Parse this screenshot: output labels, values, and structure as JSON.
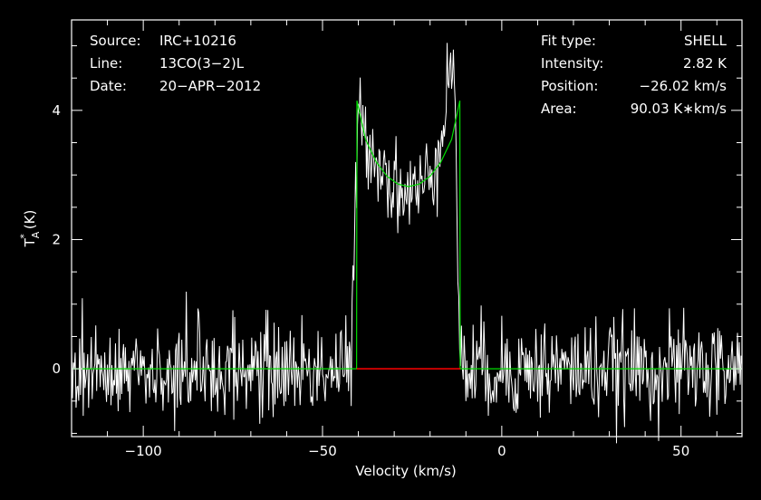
{
  "chart_data": {
    "type": "line",
    "xlabel": "Velocity (km/s)",
    "ylabel": "(K)",
    "ylabel_symbol": "T",
    "ylabel_sub": "A",
    "ylabel_sup": "*",
    "xlim": [
      -120,
      67
    ],
    "ylim": [
      -1.05,
      5.4
    ],
    "x_ticks": [
      -100,
      -50,
      0,
      50
    ],
    "x_tick_labels": [
      "−100",
      "−50",
      "0",
      "50"
    ],
    "y_ticks": [
      0,
      2,
      4
    ],
    "y_tick_labels": [
      "0",
      "2",
      "4"
    ],
    "grid": false,
    "series": [
      {
        "kind": "observed-spectrum",
        "color": "#ffffff",
        "noise_rms": 0.38,
        "channel_width_kms": 0.25,
        "profile_x": [
          -120,
          -42,
          -41,
          -40,
          -38,
          -35,
          -32,
          -29,
          -26,
          -23,
          -20,
          -17,
          -15,
          -13,
          -12.2,
          -11.5,
          67
        ],
        "profile_y": [
          0,
          0,
          2.2,
          3.9,
          3.6,
          3.3,
          3.0,
          2.8,
          2.7,
          2.75,
          3.0,
          3.6,
          4.6,
          4.4,
          1.5,
          0,
          0
        ]
      },
      {
        "kind": "shell-fit",
        "color": "#00dd00",
        "x": [
          -120,
          -40.5,
          -40.4,
          -38,
          -35,
          -32,
          -29,
          -26.02,
          -23,
          -20,
          -17,
          -14,
          -11.7,
          -11.6,
          67
        ],
        "y": [
          0,
          0,
          4.15,
          3.55,
          3.2,
          2.98,
          2.86,
          2.82,
          2.86,
          2.98,
          3.2,
          3.55,
          4.15,
          0,
          0
        ]
      },
      {
        "kind": "baseline-window",
        "color": "#ff0000",
        "x": [
          -40.5,
          -11.6
        ],
        "y": [
          0,
          0
        ]
      }
    ]
  },
  "info_left": [
    {
      "label": "Source:",
      "value": "IRC+10216"
    },
    {
      "label": "Line:",
      "value": "13CO(3−2)L"
    },
    {
      "label": "Date:",
      "value": "20−APR−2012"
    }
  ],
  "info_right": [
    {
      "label": "Fit type:",
      "value": "SHELL"
    },
    {
      "label": "Intensity:",
      "value": "2.82 K"
    },
    {
      "label": "Position:",
      "value": "−26.02 km/s"
    },
    {
      "label": "Area:",
      "value": "90.03 K∗km/s"
    }
  ]
}
